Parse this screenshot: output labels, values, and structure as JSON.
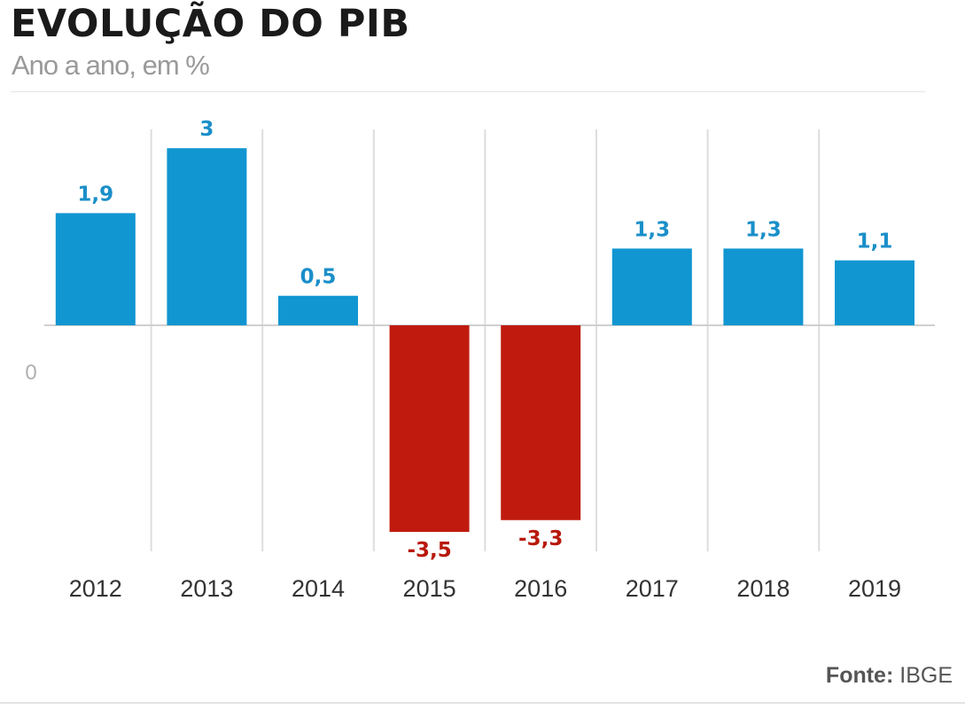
{
  "chart_data": {
    "type": "bar",
    "title": "EVOLUÇÃO DO PIB",
    "subtitle": "Ano a ano, em %",
    "categories": [
      "2012",
      "2013",
      "2014",
      "2015",
      "2016",
      "2017",
      "2018",
      "2019"
    ],
    "values": [
      1.9,
      3,
      0.5,
      -3.5,
      -3.3,
      1.3,
      1.3,
      1.1
    ],
    "value_labels": [
      "1,9",
      "3",
      "0,5",
      "-3,5",
      "-3,3",
      "1,3",
      "1,3",
      "1,1"
    ],
    "zero_label": "0",
    "xlabel": "",
    "ylabel": "",
    "ylim": [
      -3.5,
      3.3
    ],
    "colors": {
      "positive": "#1196d1",
      "negative": "#c01a0e",
      "positive_label": "#1a8fc9",
      "negative_label": "#b8190c"
    }
  },
  "source": {
    "label": "Fonte:",
    "value": "IBGE"
  }
}
